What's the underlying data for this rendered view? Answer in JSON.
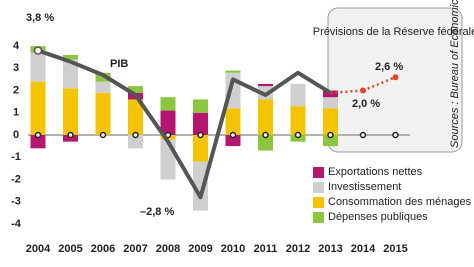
{
  "chart_data": {
    "type": "bar",
    "stacked": true,
    "categories": [
      "2004",
      "2005",
      "2006",
      "2007",
      "2008",
      "2009",
      "2010",
      "2011",
      "2012",
      "2013",
      "2014",
      "2015"
    ],
    "series": [
      {
        "name": "Exportations nettes",
        "color": "#b5176f",
        "values": [
          -0.6,
          -0.3,
          0,
          0.3,
          1.1,
          1.0,
          -0.5,
          0.1,
          0,
          0.3,
          null,
          null
        ]
      },
      {
        "name": "Investissement",
        "color": "#cfcfcf",
        "values": [
          1.3,
          1.3,
          0.5,
          -0.6,
          -1.8,
          -2.2,
          1.6,
          0.6,
          1.0,
          0.5,
          null,
          null
        ]
      },
      {
        "name": "Consommation des ménages",
        "color": "#f5c400",
        "values": [
          2.4,
          2.1,
          1.9,
          1.6,
          -0.2,
          -1.2,
          1.2,
          1.6,
          1.3,
          1.2,
          null,
          null
        ]
      },
      {
        "name": "Dépenses publiques",
        "color": "#8cc63f",
        "values": [
          0.3,
          0.2,
          0.4,
          0.3,
          0.6,
          0.6,
          0.1,
          -0.7,
          -0.3,
          -0.5,
          null,
          null
        ]
      }
    ],
    "line": {
      "name": "PIB",
      "color": "#555555",
      "values": [
        3.8,
        3.3,
        2.7,
        1.8,
        -0.3,
        -2.8,
        2.5,
        1.8,
        2.8,
        1.9,
        null,
        null
      ]
    },
    "forecast": {
      "title": "Prévisions de la Réserve fédérale",
      "color": "#e0452b",
      "values": [
        null,
        null,
        null,
        null,
        null,
        null,
        null,
        null,
        null,
        null,
        2.0,
        2.6
      ]
    },
    "annotations": [
      "3,8 %",
      "–2,8 %",
      "2,6 %",
      "2,0 %"
    ],
    "source": "Sources : Bureau of Economic Analysis, Fed",
    "ylim": [
      -4.5,
      4.5
    ],
    "yticks": [
      4,
      3,
      2,
      1,
      0,
      -1,
      -2,
      -3,
      -4
    ]
  }
}
